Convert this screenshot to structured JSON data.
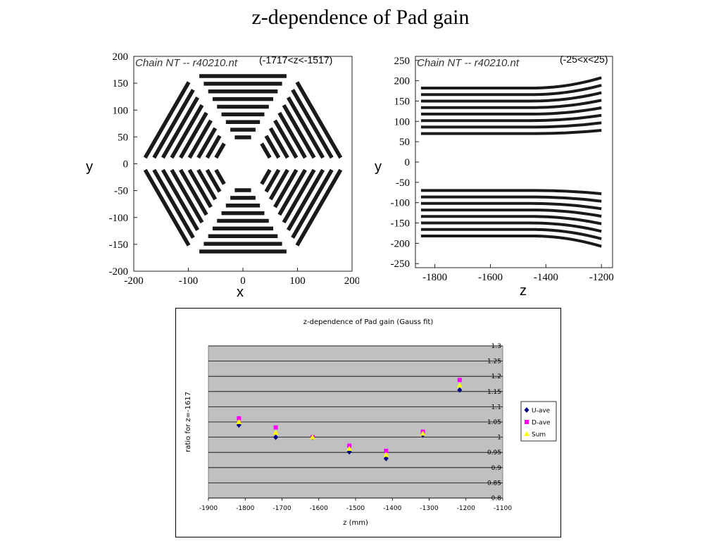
{
  "slide": {
    "title": "z-dependence of Pad gain"
  },
  "left_scan": {
    "header": "Chain NT -- r40210.nt",
    "range": "(-1717<z<-1517)",
    "xlabel": "x",
    "ylabel": "y",
    "x_ticks": [
      "-200",
      "-100",
      "0",
      "100",
      "200"
    ],
    "y_ticks": [
      "200",
      "150",
      "100",
      "50",
      "0",
      "-50",
      "-100",
      "-150",
      "-200"
    ]
  },
  "right_scan": {
    "header": "Chain NT -- r40210.nt",
    "range": "(-25<x<25)",
    "xlabel": "z",
    "ylabel": "y",
    "x_ticks": [
      "-1800",
      "-1600",
      "-1400",
      "-1200"
    ],
    "y_ticks": [
      "250",
      "200",
      "150",
      "100",
      "50",
      "0",
      "-50",
      "-100",
      "-150",
      "-200",
      "-250"
    ]
  },
  "chart_data": {
    "type": "scatter",
    "title": "z-dependence of Pad gain (Gauss fit)",
    "xlabel": "z (mm)",
    "ylabel": "ratio for z=-1617",
    "xlim": [
      -1900,
      -1100
    ],
    "ylim": [
      0.8,
      1.3
    ],
    "x_ticks": [
      "-1900",
      "-1800",
      "-1700",
      "-1600",
      "-1500",
      "-1400",
      "-1300",
      "-1200",
      "-1100"
    ],
    "y_ticks": [
      "1.3",
      "1.25",
      "1.2",
      "1.15",
      "1.1",
      "1.05",
      "1",
      "0.95",
      "0.9",
      "0.85",
      "0.8"
    ],
    "grid": true,
    "legend_position": "right",
    "series": [
      {
        "name": "U-ave",
        "color": "#000080",
        "marker": "diamond",
        "x": [
          -1817,
          -1717,
          -1617,
          -1517,
          -1417,
          -1317,
          -1217
        ],
        "y": [
          1.04,
          1.0,
          1.0,
          0.952,
          0.93,
          1.008,
          1.155
        ]
      },
      {
        "name": "D-ave",
        "color": "#ff00ff",
        "marker": "square",
        "x": [
          -1817,
          -1717,
          -1617,
          -1517,
          -1417,
          -1317,
          -1217
        ],
        "y": [
          1.062,
          1.032,
          1.0,
          0.972,
          0.955,
          1.018,
          1.188
        ]
      },
      {
        "name": "Sum",
        "color": "#ffff00",
        "marker": "triangle",
        "x": [
          -1817,
          -1717,
          -1617,
          -1517,
          -1417,
          -1317,
          -1217
        ],
        "y": [
          1.05,
          1.015,
          1.0,
          0.962,
          0.942,
          1.012,
          1.17
        ]
      }
    ]
  }
}
